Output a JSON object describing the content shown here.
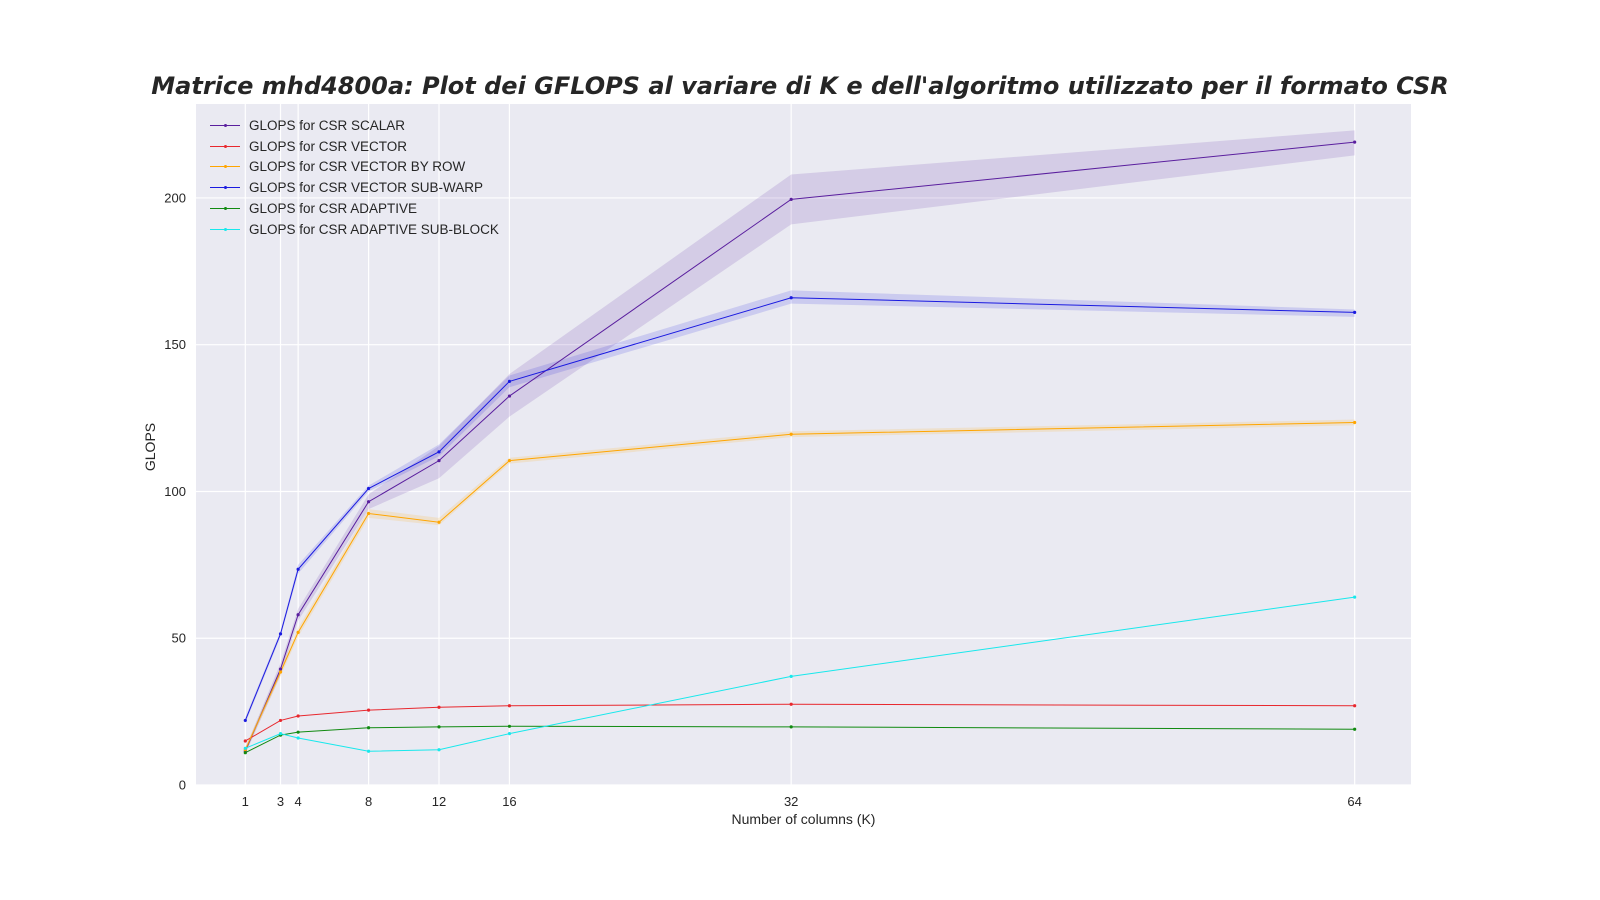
{
  "chart_data": {
    "type": "line",
    "title": "Matrice mhd4800a: Plot dei GFLOPS al variare di K e dell'algoritmo utilizzato per il formato CSR",
    "xlabel": "Number of columns (K)",
    "ylabel": "GLOPS",
    "x": [
      1,
      3,
      4,
      8,
      12,
      16,
      32,
      64
    ],
    "x_tick_labels": [
      "1",
      "3",
      "4",
      "8",
      "12",
      "16",
      "32",
      "64"
    ],
    "y_ticks": [
      0,
      50,
      100,
      150,
      200
    ],
    "y_tick_labels": [
      "0",
      "50",
      "100",
      "150",
      "200"
    ],
    "xlim": [
      -1.8,
      67.2
    ],
    "ylim": [
      0,
      232
    ],
    "grid": true,
    "legend_position": "top-left",
    "background_color": "#eaeaf2",
    "series": [
      {
        "name": "GLOPS for CSR SCALAR",
        "color": "#5a1f9e",
        "values": [
          11.5,
          39.5,
          58,
          96.5,
          110.5,
          132.5,
          199.5,
          219
        ],
        "band_low": [
          10.5,
          37.5,
          56,
          94,
          104.5,
          125.5,
          191,
          214.5
        ],
        "band_high": [
          12.5,
          41.5,
          60,
          99,
          115.5,
          140,
          208,
          223
        ]
      },
      {
        "name": "GLOPS for CSR VECTOR",
        "color": "#e8282e",
        "values": [
          15,
          22,
          23.5,
          25.5,
          26.5,
          27,
          27.5,
          27
        ]
      },
      {
        "name": "GLOPS for CSR VECTOR BY ROW",
        "color": "#ffa500",
        "values": [
          12,
          38.5,
          52,
          92.5,
          89.5,
          110.5,
          119.5,
          123.5
        ],
        "band_low": [
          11,
          37,
          50.5,
          91,
          88.5,
          109.5,
          118.5,
          122.5
        ],
        "band_high": [
          13,
          40,
          53.5,
          94,
          91,
          111.5,
          120.5,
          124.5
        ]
      },
      {
        "name": "GLOPS for CSR VECTOR SUB-WARP",
        "color": "#1a1ae0",
        "values": [
          22,
          51.5,
          73.5,
          101,
          113.5,
          137.5,
          166,
          161
        ],
        "band_low": [
          21,
          50.5,
          72,
          100,
          112,
          135.5,
          164,
          159.5
        ],
        "band_high": [
          23,
          52.5,
          75,
          102,
          116,
          139.5,
          168.5,
          162
        ]
      },
      {
        "name": "GLOPS for CSR ADAPTIVE",
        "color": "#118a11",
        "values": [
          11,
          17,
          18,
          19.5,
          19.8,
          20,
          19.8,
          19
        ]
      },
      {
        "name": "GLOPS for CSR ADAPTIVE SUB-BLOCK",
        "color": "#18e8ec",
        "values": [
          12.5,
          17.5,
          16,
          11.5,
          12,
          17.5,
          37,
          64
        ]
      }
    ]
  }
}
